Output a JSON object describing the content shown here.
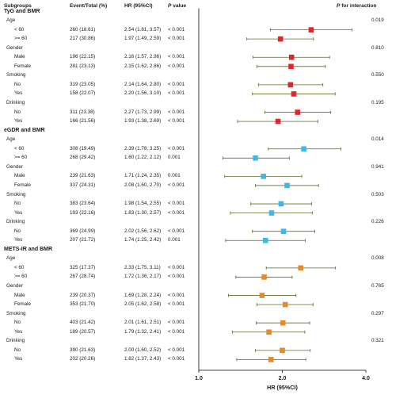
{
  "header": {
    "subgroups": "Subgroups",
    "event_total": "Event/Total (%)",
    "hr": "HR (95%CI)",
    "p_value_p": "P",
    "p_value_rest": " value",
    "p_int_p": "P",
    "p_int_rest": " for interaction"
  },
  "chart_data": {
    "type": "forest",
    "xlabel": "HR (95%CI)",
    "xlim": [
      1.0,
      4.0
    ],
    "xticks": [
      "1.0",
      "2.0",
      "4.0"
    ],
    "log_scale": true,
    "groups": [
      {
        "name": "TyG and BMR",
        "color": "#e0262a",
        "subgroups": [
          {
            "name": "Age",
            "p_interaction": "0.019",
            "rows": [
              {
                "label": "< 60",
                "events": "260 (18.61)",
                "hr_text": "2.54 (1.81, 3.57)",
                "p": "< 0.001",
                "hr": 2.54,
                "lo": 1.81,
                "hi": 3.57
              },
              {
                "label": ">= 60",
                "events": "217 (30.86)",
                "hr_text": "1.97 (1.49, 2.59)",
                "p": "< 0.001",
                "hr": 1.97,
                "lo": 1.49,
                "hi": 2.59
              }
            ]
          },
          {
            "name": "Gender",
            "p_interaction": "0.810",
            "rows": [
              {
                "label": "Male",
                "events": "196 (22.15)",
                "hr_text": "2.16 (1.57, 2.96)",
                "p": "< 0.001",
                "hr": 2.16,
                "lo": 1.57,
                "hi": 2.96
              },
              {
                "label": "Female",
                "events": "281 (23.13)",
                "hr_text": "2.15 (1.62, 2.86)",
                "p": "< 0.001",
                "hr": 2.15,
                "lo": 1.62,
                "hi": 2.86
              }
            ]
          },
          {
            "name": "Smoking",
            "p_interaction": "0.550",
            "rows": [
              {
                "label": "No",
                "events": "319 (23.05)",
                "hr_text": "2.14 (1.64, 2.80)",
                "p": "< 0.001",
                "hr": 2.14,
                "lo": 1.64,
                "hi": 2.8
              },
              {
                "label": "Yes",
                "events": "158 (22.07)",
                "hr_text": "2.20 (1.56, 3.10)",
                "p": "< 0.001",
                "hr": 2.2,
                "lo": 1.56,
                "hi": 3.1
              }
            ]
          },
          {
            "name": "Drinking",
            "p_interaction": "0.195",
            "rows": [
              {
                "label": "No",
                "events": "311 (23.38)",
                "hr_text": "2.27 (1.73, 2.99)",
                "p": "< 0.001",
                "hr": 2.27,
                "lo": 1.73,
                "hi": 2.99
              },
              {
                "label": "Yes",
                "events": "166 (21.56)",
                "hr_text": "1.93 (1.38, 2.69)",
                "p": "< 0.001",
                "hr": 1.93,
                "lo": 1.38,
                "hi": 2.69
              }
            ]
          }
        ]
      },
      {
        "name": "eGDR and BMR",
        "color": "#3fb8e6",
        "subgroups": [
          {
            "name": "Age",
            "p_interaction": "0.014",
            "rows": [
              {
                "label": "< 60",
                "events": "308 (19.49)",
                "hr_text": "2.39 (1.78, 3.25)",
                "p": "< 0.001",
                "hr": 2.39,
                "lo": 1.78,
                "hi": 3.25
              },
              {
                "label": ">= 60",
                "events": "268 (29.42)",
                "hr_text": "1.60 (1.22, 2.12)",
                "p": "0.001",
                "hr": 1.6,
                "lo": 1.22,
                "hi": 2.12
              }
            ]
          },
          {
            "name": "Gender",
            "p_interaction": "0.941",
            "rows": [
              {
                "label": "Male",
                "events": "239 (21.63)",
                "hr_text": "1.71 (1.24, 2.35)",
                "p": "0.001",
                "hr": 1.71,
                "lo": 1.24,
                "hi": 2.35
              },
              {
                "label": "Female",
                "events": "337 (24.31)",
                "hr_text": "2.08 (1.60, 2.70)",
                "p": "< 0.001",
                "hr": 2.08,
                "lo": 1.6,
                "hi": 2.7
              }
            ]
          },
          {
            "name": "Smoking",
            "p_interaction": "0.503",
            "rows": [
              {
                "label": "No",
                "events": "383 (23.64)",
                "hr_text": "1.98 (1.54, 2.55)",
                "p": "< 0.001",
                "hr": 1.98,
                "lo": 1.54,
                "hi": 2.55
              },
              {
                "label": "Yes",
                "events": "193 (22.16)",
                "hr_text": "1.83 (1.30, 2.57)",
                "p": "< 0.001",
                "hr": 1.83,
                "lo": 1.3,
                "hi": 2.57
              }
            ]
          },
          {
            "name": "Drinking",
            "p_interaction": "0.226",
            "rows": [
              {
                "label": "No",
                "events": "369 (24.99)",
                "hr_text": "2.02 (1.56, 2.62)",
                "p": "< 0.001",
                "hr": 2.02,
                "lo": 1.56,
                "hi": 2.62
              },
              {
                "label": "Yes",
                "events": "207 (21.72)",
                "hr_text": "1.74 (1.25, 2.42)",
                "p": "0.001",
                "hr": 1.74,
                "lo": 1.25,
                "hi": 2.42
              }
            ]
          }
        ]
      },
      {
        "name": "METS-IR and BMR",
        "color": "#e58a2a",
        "subgroups": [
          {
            "name": "Age",
            "p_interaction": "0.008",
            "rows": [
              {
                "label": "< 60",
                "events": "325 (17.37)",
                "hr_text": "2.33 (1.75, 3.11)",
                "p": "< 0.001",
                "hr": 2.33,
                "lo": 1.75,
                "hi": 3.11
              },
              {
                "label": ">= 60",
                "events": "267 (28.74)",
                "hr_text": "1.72 (1.36, 2.17)",
                "p": "< 0.001",
                "hr": 1.72,
                "lo": 1.36,
                "hi": 2.17
              }
            ]
          },
          {
            "name": "Gender",
            "p_interaction": "0.765",
            "rows": [
              {
                "label": "Male",
                "events": "239 (20.37)",
                "hr_text": "1.69 (1.28, 2.24)",
                "p": "< 0.001",
                "hr": 1.69,
                "lo": 1.28,
                "hi": 2.24
              },
              {
                "label": "Female",
                "events": "353 (21.70)",
                "hr_text": "2.05 (1.62, 2.58)",
                "p": "< 0.001",
                "hr": 2.05,
                "lo": 1.62,
                "hi": 2.58
              }
            ]
          },
          {
            "name": "Smoking",
            "p_interaction": "0.297",
            "rows": [
              {
                "label": "No",
                "events": "403 (21.42)",
                "hr_text": "2.01 (1.61, 2.51)",
                "p": "< 0.001",
                "hr": 2.01,
                "lo": 1.61,
                "hi": 2.51
              },
              {
                "label": "Yes",
                "events": "189 (20.57)",
                "hr_text": "1.79 (1.32, 2.41)",
                "p": "< 0.001",
                "hr": 1.79,
                "lo": 1.32,
                "hi": 2.41
              }
            ]
          },
          {
            "name": "Drinking",
            "p_interaction": "0.321",
            "rows": [
              {
                "label": "No",
                "events": "390 (21.63)",
                "hr_text": "2.00 (1.60, 2.52)",
                "p": "< 0.001",
                "hr": 2.0,
                "lo": 1.6,
                "hi": 2.52
              },
              {
                "label": "Yes",
                "events": "202 (20.26)",
                "hr_text": "1.82 (1.37, 2.43)",
                "p": "< 0.001",
                "hr": 1.82,
                "lo": 1.37,
                "hi": 2.43
              }
            ]
          }
        ]
      }
    ],
    "ci_line_color": "#5a6b2a",
    "axis_color": "#222222"
  }
}
